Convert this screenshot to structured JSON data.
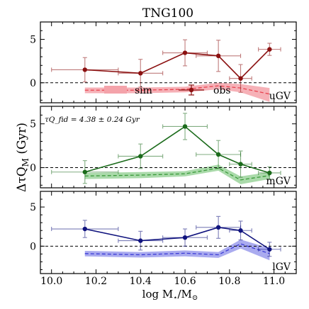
{
  "chart_data": {
    "type": "line",
    "title": "TNG100",
    "xlabel": "log M⋆/M⊙",
    "ylabel": "ΔτQ_M (Gyr)",
    "xlim": [
      9.95,
      11.1
    ],
    "x_ticks": [
      "10.0",
      "10.2",
      "10.4",
      "10.6",
      "10.8",
      "11.0"
    ],
    "legend": {
      "sim_label": "sim",
      "obs_label": "obs",
      "placement": "bottom-center of top panel"
    },
    "annotation": "τQ_fid = 4.38 ± 0.24 Gyr",
    "panels": [
      {
        "label": "uGV",
        "color": "#8b1010",
        "band_color": "#f4a3aa",
        "line_color": "#e8414d",
        "ylim": [
          -2.3,
          7
        ],
        "y_ticks": [
          0,
          5
        ],
        "obs": {
          "x": [
            10.15,
            10.4,
            10.6,
            10.75,
            10.85,
            10.98
          ],
          "y": [
            1.5,
            1.1,
            3.45,
            3.1,
            0.5,
            3.85
          ],
          "xerr": [
            0.15,
            0.1,
            0.1,
            0.1,
            0.05,
            0.05
          ],
          "yerr": [
            1.4,
            1.6,
            1.5,
            1.8,
            1.6,
            0.7
          ]
        },
        "sim": {
          "x": [
            10.15,
            10.4,
            10.6,
            10.75,
            10.85,
            10.98
          ],
          "y": [
            -0.85,
            -0.85,
            -0.75,
            -0.35,
            -0.6,
            -1.3
          ],
          "lo": [
            -1.2,
            -1.2,
            -1.1,
            -0.75,
            -1.1,
            -2.2
          ],
          "hi": [
            -0.55,
            -0.55,
            -0.45,
            0.0,
            -0.15,
            -0.6
          ]
        }
      },
      {
        "label": "mGV",
        "color": "#1b6b1b",
        "band_color": "#9bd39b",
        "line_color": "#3a9a3a",
        "ylim": [
          -2.3,
          7
        ],
        "y_ticks": [
          0,
          5
        ],
        "obs": {
          "x": [
            10.15,
            10.4,
            10.6,
            10.75,
            10.85,
            10.98
          ],
          "y": [
            -0.5,
            1.3,
            4.7,
            1.5,
            0.4,
            -0.6
          ],
          "xerr": [
            0.15,
            0.1,
            0.1,
            0.1,
            0.05,
            0.05
          ],
          "yerr": [
            1.3,
            1.4,
            1.5,
            1.6,
            1.5,
            0.7
          ]
        },
        "sim": {
          "x": [
            10.15,
            10.4,
            10.6,
            10.75,
            10.85,
            10.98
          ],
          "y": [
            -0.95,
            -0.85,
            -0.7,
            -0.05,
            -1.4,
            -0.9
          ],
          "lo": [
            -1.3,
            -1.2,
            -1.0,
            -0.35,
            -1.9,
            -1.3
          ],
          "hi": [
            -0.6,
            -0.5,
            -0.4,
            0.35,
            -1.0,
            -0.5
          ]
        }
      },
      {
        "label": "lGV",
        "color": "#10137e",
        "band_color": "#9b9cec",
        "line_color": "#3b3bd6",
        "ylim": [
          -3.5,
          7
        ],
        "y_ticks": [
          0,
          5
        ],
        "obs": {
          "x": [
            10.15,
            10.4,
            10.6,
            10.75,
            10.85,
            10.98
          ],
          "y": [
            2.2,
            0.7,
            1.1,
            2.4,
            2.0,
            -0.4
          ],
          "xerr": [
            0.15,
            0.1,
            0.1,
            0.1,
            0.05,
            0.05
          ],
          "yerr": [
            1.1,
            1.2,
            1.1,
            1.4,
            1.2,
            0.9
          ]
        },
        "sim": {
          "x": [
            10.15,
            10.4,
            10.6,
            10.75,
            10.85,
            10.98
          ],
          "y": [
            -0.95,
            -1.1,
            -0.9,
            -1.1,
            0.3,
            -0.95
          ],
          "lo": [
            -1.3,
            -1.45,
            -1.3,
            -1.5,
            -0.3,
            -1.8
          ],
          "hi": [
            -0.6,
            -0.75,
            -0.55,
            -0.75,
            0.85,
            -0.25
          ]
        }
      }
    ]
  }
}
